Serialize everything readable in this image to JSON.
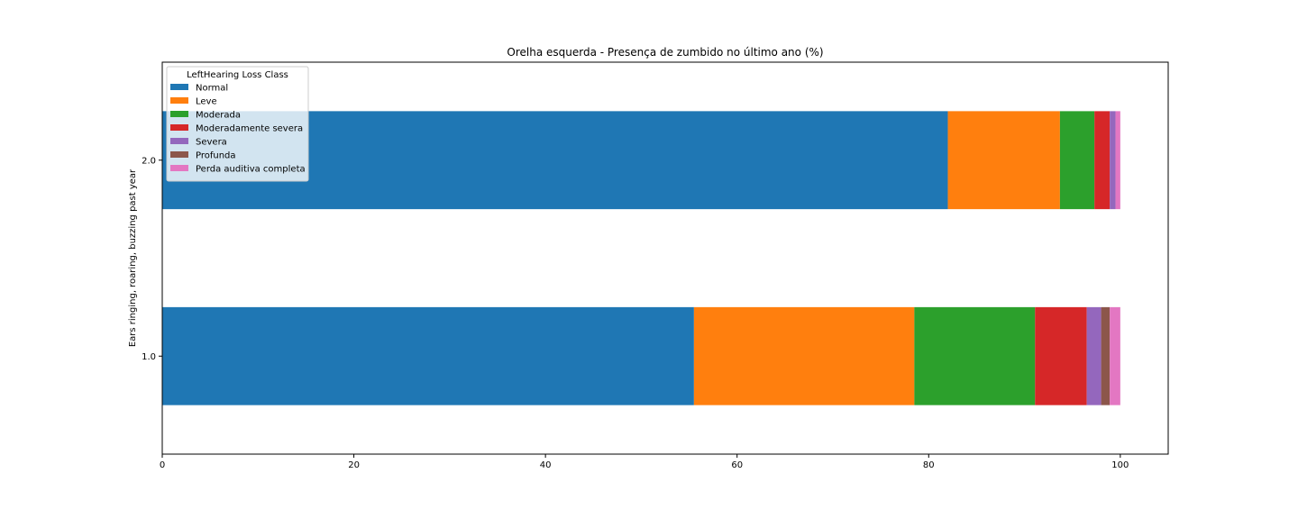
{
  "chart_data": {
    "type": "bar",
    "orientation": "horizontal",
    "stacked": true,
    "title": "Orelha esquerda - Presença de zumbido no último ano (%)",
    "xlabel": "",
    "ylabel": "Ears ringing, roaring, buzzing past year",
    "xlim": [
      0,
      105
    ],
    "xticks": [
      0,
      20,
      40,
      60,
      80,
      100
    ],
    "xtick_labels": [
      "0",
      "20",
      "40",
      "60",
      "80",
      "100"
    ],
    "categories": [
      "1.0",
      "2.0"
    ],
    "legend_title": "LeftHearing Loss Class",
    "legend_position": "upper-left",
    "grid": false,
    "series": [
      {
        "name": "Normal",
        "color": "#1f77b4",
        "values": [
          55.5,
          82.0
        ]
      },
      {
        "name": "Leve",
        "color": "#ff7f0e",
        "values": [
          23.0,
          11.7
        ]
      },
      {
        "name": "Moderada",
        "color": "#2ca02c",
        "values": [
          12.6,
          3.6
        ]
      },
      {
        "name": "Moderadamente severa",
        "color": "#d62728",
        "values": [
          5.4,
          1.6
        ]
      },
      {
        "name": "Severa",
        "color": "#9467bd",
        "values": [
          1.5,
          0.6
        ]
      },
      {
        "name": "Profunda",
        "color": "#8c564b",
        "values": [
          0.9,
          0.0
        ]
      },
      {
        "name": "Perda auditiva completa",
        "color": "#e377c2",
        "values": [
          1.1,
          0.5
        ]
      }
    ]
  }
}
